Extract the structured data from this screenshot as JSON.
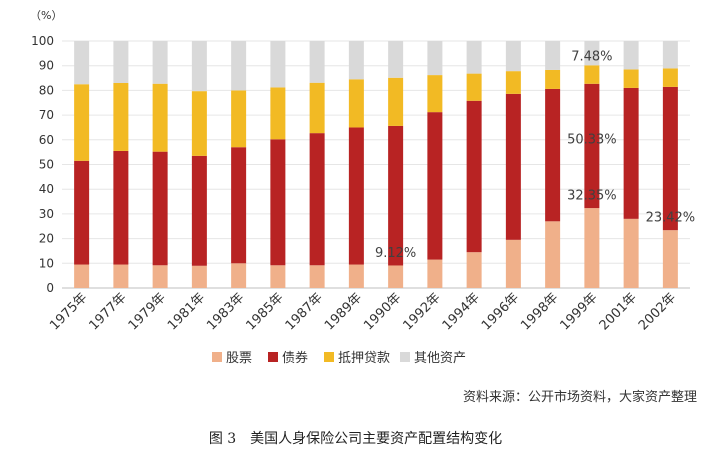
{
  "chart_data": {
    "type": "bar",
    "stacked": true,
    "y_unit_label": "（%）",
    "ylim": [
      0,
      100
    ],
    "yticks": [
      0,
      10,
      20,
      30,
      40,
      50,
      60,
      70,
      80,
      90,
      100
    ],
    "categories": [
      "1975年",
      "1977年",
      "1979年",
      "1981年",
      "1983年",
      "1985年",
      "1987年",
      "1989年",
      "1990年",
      "1992年",
      "1994年",
      "1996年",
      "1998年",
      "1999年",
      "2001年",
      "2002年"
    ],
    "series": [
      {
        "name": "股票",
        "color": "#F0B08A",
        "values": [
          9.5,
          9.5,
          9.2,
          9.0,
          10.0,
          9.2,
          9.2,
          9.5,
          9.12,
          11.5,
          14.5,
          19.5,
          27.0,
          32.35,
          28.0,
          23.42
        ]
      },
      {
        "name": "债券",
        "color": "#B82323",
        "values": [
          42.0,
          46.0,
          46.0,
          44.5,
          47.0,
          51.0,
          53.5,
          55.5,
          56.5,
          59.7,
          61.3,
          59.1,
          53.6,
          50.33,
          53.0,
          58.0
        ]
      },
      {
        "name": "抵押贷款",
        "color": "#F2BA24",
        "values": [
          31.0,
          27.5,
          27.5,
          26.2,
          23.0,
          21.0,
          20.4,
          19.5,
          19.5,
          15.0,
          11.0,
          9.2,
          7.7,
          7.48,
          7.5,
          7.5
        ]
      },
      {
        "name": "其他资产",
        "color": "#D9D9D9",
        "values": [
          17.5,
          17.0,
          17.3,
          20.3,
          20.0,
          18.8,
          16.9,
          15.5,
          14.88,
          13.8,
          13.2,
          12.2,
          11.7,
          9.84,
          11.5,
          11.08
        ]
      }
    ],
    "annotations": [
      {
        "category": "1990年",
        "series": "股票",
        "text": "9.12%"
      },
      {
        "category": "1999年",
        "series": "抵押贷款",
        "text": "7.48%"
      },
      {
        "category": "1999年",
        "series": "债券",
        "text": "50.33%"
      },
      {
        "category": "1999年",
        "series": "股票",
        "text": "32.35%"
      },
      {
        "category": "2002年",
        "series": "股票",
        "text": "23.42%"
      }
    ]
  },
  "source": "资料来源：公开市场资料，大家资产整理",
  "caption": "图 3　美国人身保险公司主要资产配置结构变化"
}
